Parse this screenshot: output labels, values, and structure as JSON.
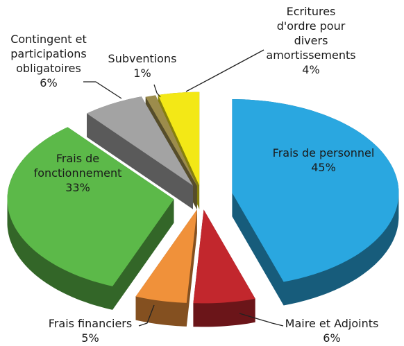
{
  "chart_data": {
    "type": "pie",
    "categories": [
      "Frais de personnel",
      "Maire et Adjoints",
      "Frais financiers",
      "Frais de fonctionnement",
      "Contingent et participations obligatoires",
      "Subventions",
      "Ecritures d'ordre pour divers amortissements"
    ],
    "values": [
      45,
      6,
      5,
      33,
      6,
      1,
      4
    ],
    "value_labels": [
      "45%",
      "6%",
      "5%",
      "33%",
      "6%",
      "1%",
      "4%"
    ],
    "colors": [
      "#2aa7e0",
      "#c2272d",
      "#f0913a",
      "#5cb949",
      "#a3a3a3",
      "#9c8c4c",
      "#f3e816"
    ]
  }
}
